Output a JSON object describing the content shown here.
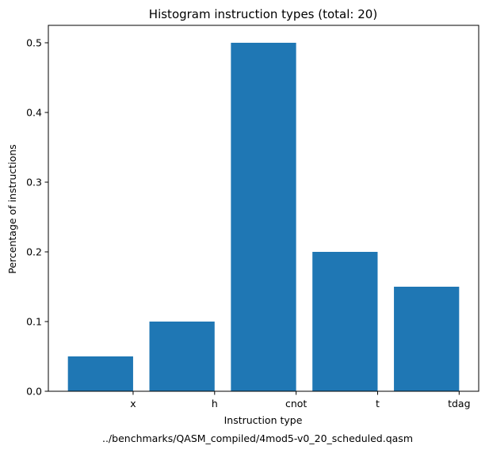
{
  "chart_data": {
    "type": "bar",
    "title": "Histogram instruction types (total: 20)",
    "xlabel": "Instruction type",
    "ylabel": "Percentage of instructions",
    "categories": [
      "x",
      "h",
      "cnot",
      "t",
      "tdag"
    ],
    "values": [
      0.05,
      0.1,
      0.5,
      0.2,
      0.15
    ],
    "ylim": [
      0,
      0.525
    ],
    "yticks": [
      0.0,
      0.1,
      0.2,
      0.3,
      0.4,
      0.5
    ],
    "ytick_labels": [
      "0.0",
      "0.1",
      "0.2",
      "0.3",
      "0.4",
      "0.5"
    ],
    "bar_color": "#1f77b4",
    "grid": false,
    "legend": "none",
    "footer": "../benchmarks/QASM_compiled/4mod5-v0_20_scheduled.qasm"
  }
}
